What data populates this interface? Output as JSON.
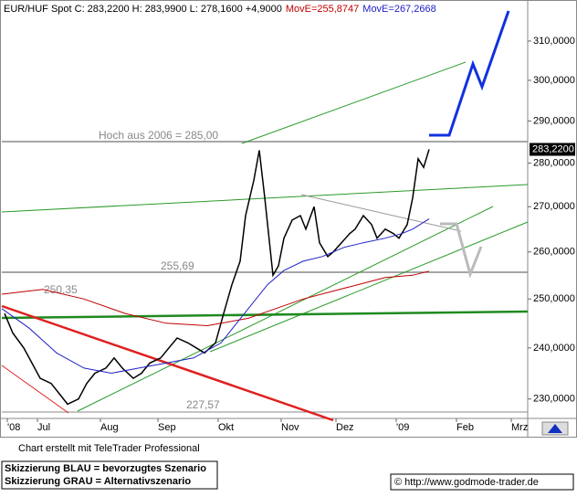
{
  "chart_data": {
    "type": "line",
    "x": [
      1,
      4,
      8,
      11,
      14,
      18,
      21,
      24,
      28,
      31,
      34,
      38,
      41,
      44,
      48,
      51,
      54,
      58,
      61,
      64,
      68,
      71,
      74,
      78,
      81,
      84,
      87,
      89,
      92,
      94,
      96,
      99,
      101,
      103,
      106,
      109,
      111,
      114,
      116,
      119,
      121,
      124,
      127,
      129,
      132,
      135,
      137,
      140,
      143,
      145,
      148,
      150,
      152,
      154,
      156
    ],
    "series": [
      {
        "name": "EUR/HUF Spot C: 283,2200 H: 283,9900 L: 278,1600 +4,9000",
        "color": "#000000",
        "values": [
          247,
          243,
          240,
          237,
          234,
          233,
          231,
          229,
          230,
          233,
          235,
          236,
          238,
          236,
          234,
          235,
          237,
          238,
          240,
          242,
          241,
          240,
          239,
          241,
          247,
          253,
          258,
          268,
          276,
          283,
          272,
          255,
          257,
          263,
          267,
          268,
          265,
          270,
          262,
          259,
          260,
          262,
          264,
          265,
          268,
          266,
          263,
          265,
          264,
          263,
          266,
          272,
          281,
          279,
          283.22
        ]
      },
      {
        "name": "MovE=255,8747",
        "color": "#c00000",
        "x": [
          0,
          15,
          30,
          45,
          60,
          75,
          90,
          100,
          110,
          120,
          130,
          140,
          150,
          156
        ],
        "values": [
          251,
          252,
          250,
          247,
          245,
          244.5,
          246,
          248,
          250,
          251.5,
          253,
          254.5,
          255,
          255.8747
        ]
      },
      {
        "name": "MovE=267,2668",
        "color": "#2020c8",
        "x": [
          0,
          10,
          20,
          30,
          40,
          50,
          60,
          70,
          80,
          90,
          97,
          103,
          110,
          117,
          125,
          132,
          140,
          146,
          150,
          156
        ],
        "values": [
          248,
          244,
          239,
          236,
          235,
          236,
          237,
          238,
          241,
          248,
          253,
          256,
          258,
          259,
          261,
          262,
          263,
          264,
          265,
          267.2668
        ]
      }
    ],
    "xlim": [
      0,
      192
    ],
    "xticks": [
      {
        "value": 2,
        "label": "'08"
      },
      {
        "value": 13,
        "label": "Jul"
      },
      {
        "value": 36,
        "label": "Aug"
      },
      {
        "value": 57,
        "label": "Sep"
      },
      {
        "value": 79,
        "label": "Okt"
      },
      {
        "value": 102,
        "label": "Nov"
      },
      {
        "value": 122,
        "label": "Dez"
      },
      {
        "value": 144,
        "label": "'09"
      },
      {
        "value": 166,
        "label": "Feb"
      },
      {
        "value": 186,
        "label": "Mrz"
      }
    ],
    "ylim": [
      226.3,
      320.3
    ],
    "log_scale": true,
    "grid": false,
    "yticks": [
      {
        "value": 230,
        "label": "230,0000"
      },
      {
        "value": 240,
        "label": "240,0000"
      },
      {
        "value": 250,
        "label": "250,0000"
      },
      {
        "value": 260,
        "label": "260,0000"
      },
      {
        "value": 270,
        "label": "270,0000"
      },
      {
        "value": 280,
        "label": "280,0000"
      },
      {
        "value": 290,
        "label": "290,0000"
      },
      {
        "value": 300,
        "label": "300,0000"
      },
      {
        "value": 310,
        "label": "310,0000"
      }
    ],
    "last_price": {
      "value": 283.22,
      "label": "283,2200"
    },
    "annotations": [
      "Hoch aus 2006 = 285,00",
      "255,69",
      "250,35",
      "227,57"
    ],
    "footer_notes": [
      "Chart erstellt mit TeleTrader Professional",
      "Skizzierung BLAU = bevorzugtes Szenario",
      "Skizzierung GRAU = Alternativszenario"
    ],
    "source": "© http://www.godmode-trader.de"
  }
}
